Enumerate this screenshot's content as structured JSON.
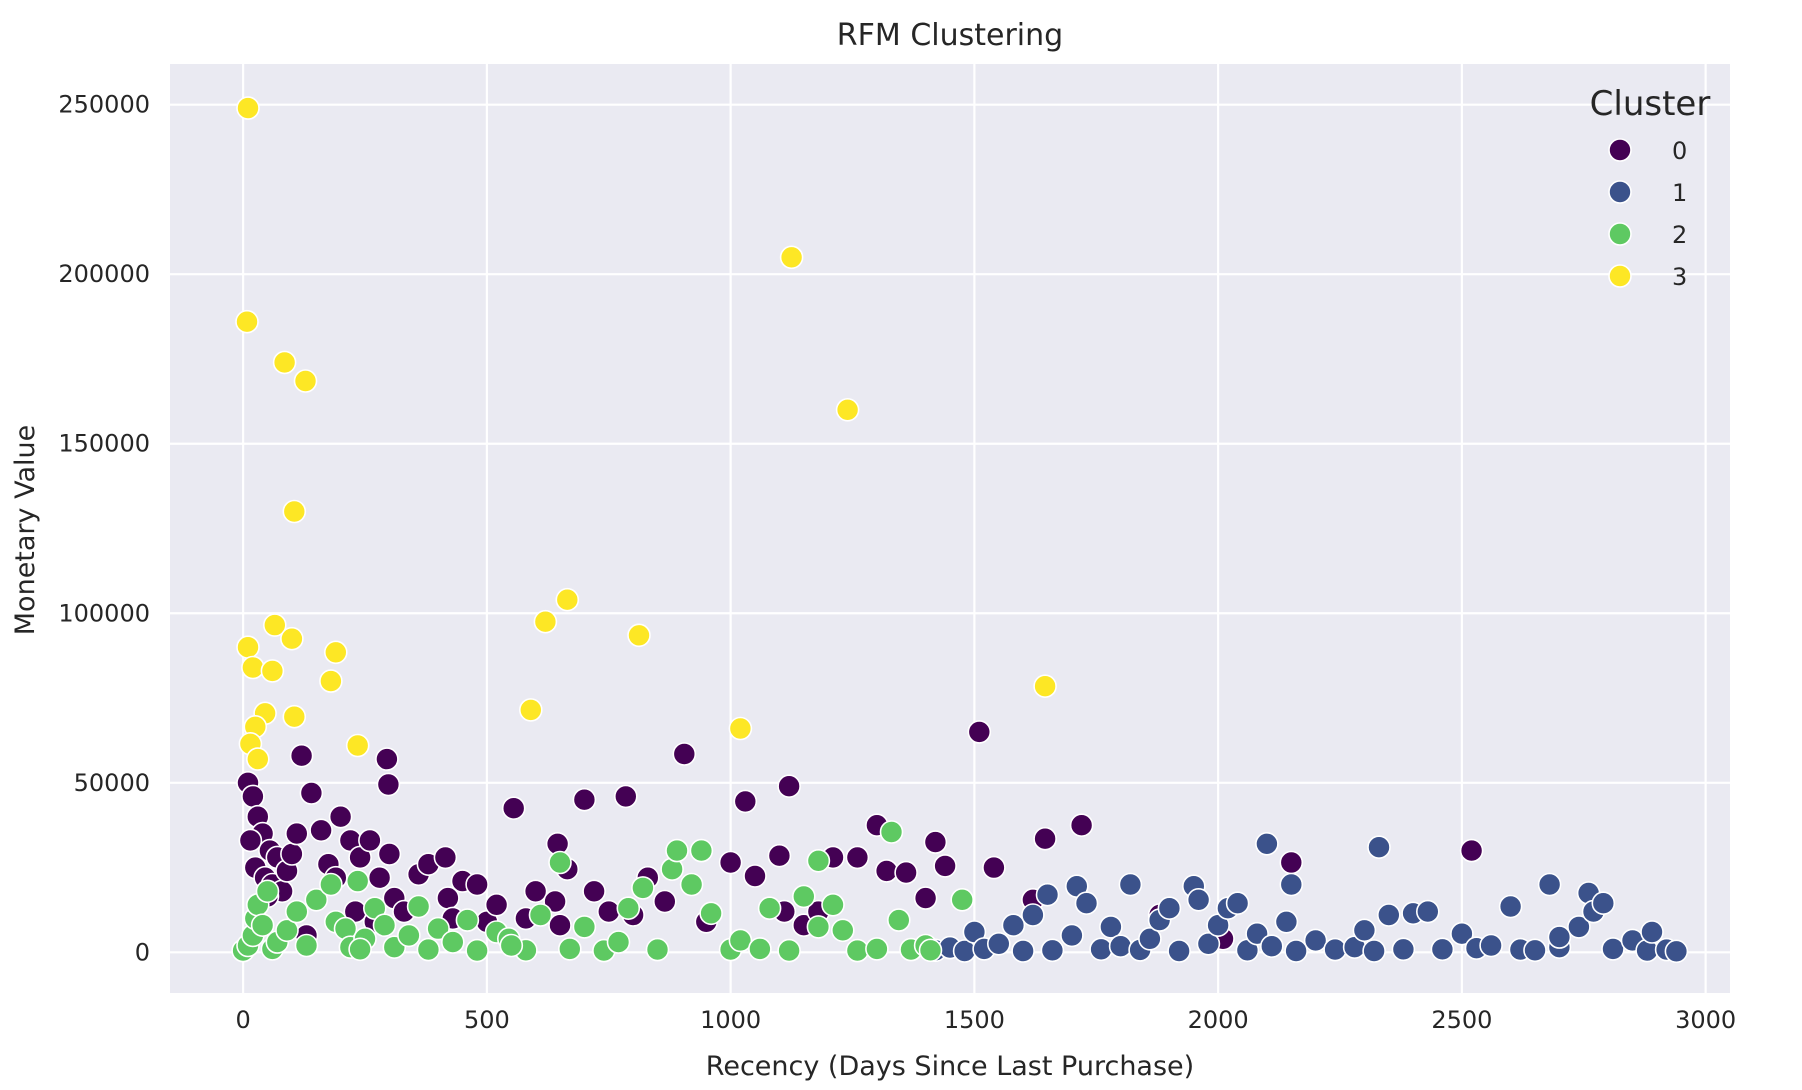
{
  "chart_data": {
    "type": "scatter",
    "title": "RFM Clustering",
    "xlabel": "Recency (Days Since Last Purchase)",
    "ylabel": "Monetary Value",
    "xlim": [
      -150,
      3050
    ],
    "ylim": [
      -12000,
      262000
    ],
    "xticks": [
      0,
      500,
      1000,
      1500,
      2000,
      2500,
      3000
    ],
    "yticks": [
      0,
      50000,
      100000,
      150000,
      200000,
      250000
    ],
    "grid": true,
    "background": "#eaeaf2",
    "legend": {
      "title": "Cluster",
      "position": "top-right"
    },
    "series": [
      {
        "name": "0",
        "color": "#440154",
        "points": [
          [
            10,
            50000
          ],
          [
            20,
            46000
          ],
          [
            30,
            40000
          ],
          [
            40,
            35000
          ],
          [
            55,
            30000
          ],
          [
            70,
            28000
          ],
          [
            15,
            33000
          ],
          [
            25,
            25000
          ],
          [
            45,
            22000
          ],
          [
            60,
            20000
          ],
          [
            80,
            18000
          ],
          [
            90,
            24000
          ],
          [
            100,
            29000
          ],
          [
            110,
            35000
          ],
          [
            120,
            58000
          ],
          [
            140,
            47000
          ],
          [
            160,
            36000
          ],
          [
            175,
            26000
          ],
          [
            190,
            22000
          ],
          [
            200,
            40000
          ],
          [
            220,
            33000
          ],
          [
            240,
            28000
          ],
          [
            260,
            33000
          ],
          [
            280,
            22000
          ],
          [
            295,
            57000
          ],
          [
            298,
            49500
          ],
          [
            300,
            29000
          ],
          [
            310,
            16000
          ],
          [
            330,
            12000
          ],
          [
            360,
            23000
          ],
          [
            380,
            26000
          ],
          [
            415,
            28000
          ],
          [
            420,
            16000
          ],
          [
            450,
            21000
          ],
          [
            480,
            20000
          ],
          [
            500,
            9000
          ],
          [
            520,
            14000
          ],
          [
            555,
            42500
          ],
          [
            580,
            10000
          ],
          [
            600,
            18000
          ],
          [
            640,
            15000
          ],
          [
            645,
            32000
          ],
          [
            650,
            8000
          ],
          [
            665,
            24500
          ],
          [
            700,
            45000
          ],
          [
            720,
            18000
          ],
          [
            750,
            12000
          ],
          [
            785,
            46000
          ],
          [
            800,
            11000
          ],
          [
            830,
            22000
          ],
          [
            865,
            15000
          ],
          [
            905,
            58500
          ],
          [
            950,
            9000
          ],
          [
            1000,
            26500
          ],
          [
            1030,
            44500
          ],
          [
            1050,
            22500
          ],
          [
            1100,
            28500
          ],
          [
            1110,
            12000
          ],
          [
            1120,
            49000
          ],
          [
            1150,
            8000
          ],
          [
            1180,
            12000
          ],
          [
            1210,
            28000
          ],
          [
            1260,
            28000
          ],
          [
            1300,
            37500
          ],
          [
            1320,
            24000
          ],
          [
            1360,
            23500
          ],
          [
            1400,
            16000
          ],
          [
            1420,
            32500
          ],
          [
            1440,
            25500
          ],
          [
            1510,
            65000
          ],
          [
            1540,
            25000
          ],
          [
            1620,
            15500
          ],
          [
            1645,
            33500
          ],
          [
            1720,
            37500
          ],
          [
            1880,
            11000
          ],
          [
            2010,
            4000
          ],
          [
            2150,
            26500
          ],
          [
            2520,
            30000
          ],
          [
            30,
            8000
          ],
          [
            50,
            16500
          ],
          [
            130,
            5000
          ],
          [
            230,
            12000
          ],
          [
            270,
            9000
          ],
          [
            430,
            10000
          ]
        ]
      },
      {
        "name": "1",
        "color": "#3b528b",
        "points": [
          [
            1420,
            600
          ],
          [
            1450,
            1400
          ],
          [
            1480,
            400
          ],
          [
            1500,
            6000
          ],
          [
            1520,
            1000
          ],
          [
            1550,
            2500
          ],
          [
            1580,
            8000
          ],
          [
            1600,
            400
          ],
          [
            1620,
            11000
          ],
          [
            1650,
            17000
          ],
          [
            1660,
            600
          ],
          [
            1700,
            5000
          ],
          [
            1710,
            19500
          ],
          [
            1730,
            14500
          ],
          [
            1760,
            900
          ],
          [
            1780,
            7500
          ],
          [
            1800,
            1800
          ],
          [
            1820,
            20000
          ],
          [
            1840,
            700
          ],
          [
            1860,
            4000
          ],
          [
            1880,
            9500
          ],
          [
            1900,
            13000
          ],
          [
            1920,
            400
          ],
          [
            1950,
            19500
          ],
          [
            1960,
            15500
          ],
          [
            1980,
            2500
          ],
          [
            2000,
            8000
          ],
          [
            2020,
            13000
          ],
          [
            2040,
            14500
          ],
          [
            2060,
            600
          ],
          [
            2080,
            5500
          ],
          [
            2100,
            32000
          ],
          [
            2110,
            1800
          ],
          [
            2140,
            9000
          ],
          [
            2150,
            20000
          ],
          [
            2160,
            400
          ],
          [
            2200,
            3500
          ],
          [
            2240,
            800
          ],
          [
            2280,
            1500
          ],
          [
            2300,
            6500
          ],
          [
            2320,
            400
          ],
          [
            2330,
            31000
          ],
          [
            2350,
            11000
          ],
          [
            2380,
            900
          ],
          [
            2400,
            11500
          ],
          [
            2430,
            12000
          ],
          [
            2460,
            900
          ],
          [
            2500,
            5500
          ],
          [
            2530,
            1200
          ],
          [
            2560,
            2000
          ],
          [
            2600,
            13500
          ],
          [
            2620,
            800
          ],
          [
            2650,
            600
          ],
          [
            2680,
            20000
          ],
          [
            2700,
            1500
          ],
          [
            2740,
            7500
          ],
          [
            2760,
            17500
          ],
          [
            2770,
            12000
          ],
          [
            2790,
            14500
          ],
          [
            2810,
            1000
          ],
          [
            2850,
            3500
          ],
          [
            2880,
            500
          ],
          [
            2890,
            6000
          ],
          [
            2920,
            800
          ],
          [
            2940,
            300
          ],
          [
            2700,
            4500
          ]
        ]
      },
      {
        "name": "2",
        "color": "#5ec962",
        "points": [
          [
            0,
            500
          ],
          [
            10,
            2000
          ],
          [
            20,
            5000
          ],
          [
            25,
            10000
          ],
          [
            30,
            14000
          ],
          [
            40,
            8000
          ],
          [
            50,
            18000
          ],
          [
            60,
            1000
          ],
          [
            70,
            3000
          ],
          [
            90,
            6500
          ],
          [
            110,
            12000
          ],
          [
            130,
            2000
          ],
          [
            150,
            15500
          ],
          [
            180,
            20000
          ],
          [
            190,
            9000
          ],
          [
            210,
            7000
          ],
          [
            220,
            1500
          ],
          [
            235,
            21000
          ],
          [
            250,
            4000
          ],
          [
            270,
            13000
          ],
          [
            290,
            8000
          ],
          [
            310,
            1500
          ],
          [
            340,
            5000
          ],
          [
            360,
            13500
          ],
          [
            380,
            800
          ],
          [
            400,
            7000
          ],
          [
            430,
            3000
          ],
          [
            460,
            9500
          ],
          [
            480,
            500
          ],
          [
            520,
            6000
          ],
          [
            545,
            4000
          ],
          [
            580,
            600
          ],
          [
            610,
            11000
          ],
          [
            650,
            26500
          ],
          [
            670,
            1000
          ],
          [
            700,
            7500
          ],
          [
            740,
            500
          ],
          [
            770,
            3000
          ],
          [
            820,
            19000
          ],
          [
            850,
            800
          ],
          [
            880,
            24500
          ],
          [
            890,
            30000
          ],
          [
            920,
            20000
          ],
          [
            940,
            30000
          ],
          [
            960,
            11500
          ],
          [
            1000,
            800
          ],
          [
            1020,
            3500
          ],
          [
            1060,
            1000
          ],
          [
            1080,
            13000
          ],
          [
            1120,
            500
          ],
          [
            1150,
            16500
          ],
          [
            1180,
            27000
          ],
          [
            1210,
            14000
          ],
          [
            1230,
            6500
          ],
          [
            1260,
            500
          ],
          [
            1300,
            1000
          ],
          [
            1330,
            35500
          ],
          [
            1345,
            9500
          ],
          [
            1370,
            800
          ],
          [
            1400,
            2000
          ],
          [
            1410,
            600
          ],
          [
            1475,
            15500
          ],
          [
            1180,
            7500
          ],
          [
            790,
            13000
          ],
          [
            550,
            2000
          ],
          [
            240,
            900
          ]
        ]
      },
      {
        "name": "3",
        "color": "#fde725",
        "points": [
          [
            10,
            249000
          ],
          [
            8,
            186000
          ],
          [
            85,
            174000
          ],
          [
            128,
            168500
          ],
          [
            105,
            130000
          ],
          [
            10,
            90000
          ],
          [
            20,
            84000
          ],
          [
            65,
            96500
          ],
          [
            60,
            83000
          ],
          [
            100,
            92500
          ],
          [
            45,
            70500
          ],
          [
            25,
            66500
          ],
          [
            105,
            69500
          ],
          [
            15,
            61500
          ],
          [
            30,
            57000
          ],
          [
            190,
            88500
          ],
          [
            180,
            80000
          ],
          [
            235,
            61000
          ],
          [
            590,
            71500
          ],
          [
            620,
            97500
          ],
          [
            665,
            104000
          ],
          [
            812,
            93500
          ],
          [
            1020,
            66000
          ],
          [
            1125,
            205000
          ],
          [
            1240,
            160000
          ],
          [
            1645,
            78500
          ]
        ]
      }
    ]
  }
}
